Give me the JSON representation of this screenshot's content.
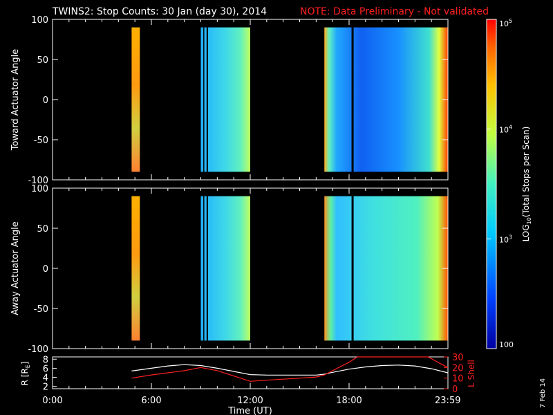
{
  "title": "TWINS2: Stop Counts: 30 Jan (day  30), 2014",
  "note": "NOTE: Data Preliminary - Not validated",
  "date_stamp": "7 Feb 14",
  "colors": {
    "background": "#000000",
    "axes": "#ffffff",
    "note": "#ff2020",
    "r_line": "#ffffff",
    "l_shell_line": "#ff2020"
  },
  "chart_data": [
    {
      "type": "heatmap",
      "ylabel": "Toward Actuator Angle",
      "ylim": [
        -100,
        100
      ],
      "yticks": [
        "100",
        "50",
        "0",
        "-50",
        "-100"
      ],
      "xlim": [
        0,
        24
      ],
      "data_blocks": [
        {
          "start": 4.8,
          "end": 5.3,
          "level": "high"
        },
        {
          "start": 9.0,
          "end": 12.0,
          "level": "medium"
        },
        {
          "start": 16.5,
          "end": 23.99,
          "level": "low"
        }
      ]
    },
    {
      "type": "heatmap",
      "ylabel": "Away Actuator Angle",
      "ylim": [
        -100,
        100
      ],
      "yticks": [
        "100",
        "50",
        "0",
        "-50",
        "-100"
      ],
      "xlim": [
        0,
        24
      ],
      "data_blocks": [
        {
          "start": 4.8,
          "end": 5.3,
          "level": "high"
        },
        {
          "start": 9.0,
          "end": 12.0,
          "level": "medium"
        },
        {
          "start": 16.5,
          "end": 23.99,
          "level": "medium-low"
        }
      ]
    },
    {
      "type": "line",
      "xlabel": "Time (UT)",
      "xticks": [
        "0:00",
        "6:00",
        "12:00",
        "18:00",
        "23:59"
      ],
      "ylabel_left": "R [R",
      "ylabel_left_sub": "E",
      "ylabel_left_close": "]",
      "yticks_left": [
        "8",
        "6",
        "4",
        "2"
      ],
      "ylim_left": [
        1.5,
        8.5
      ],
      "ylabel_right": "L Shell",
      "yticks_right": [
        "30",
        "20",
        "10",
        "0"
      ],
      "ylim_right": [
        0,
        30
      ],
      "series": [
        {
          "axis": "left",
          "color": "#ffffff",
          "x": [
            4.8,
            6,
            7,
            8,
            9,
            10,
            11,
            12,
            13,
            14,
            15,
            16,
            16.5,
            17,
            18,
            19,
            20,
            21,
            22,
            23,
            23.99
          ],
          "y": [
            5.4,
            6.0,
            6.5,
            6.8,
            6.6,
            6.0,
            5.3,
            4.6,
            4.5,
            4.5,
            4.5,
            4.5,
            4.7,
            5.1,
            5.8,
            6.3,
            6.6,
            6.7,
            6.5,
            5.9,
            5.0
          ]
        },
        {
          "axis": "right",
          "color": "#ff2020",
          "x": [
            4.8,
            6,
            7,
            8,
            9,
            10,
            11,
            12,
            13,
            14,
            15,
            16,
            16.5,
            17,
            18,
            18.5,
            22.8,
            23.5,
            23.99
          ],
          "y": [
            10,
            13,
            15,
            17,
            20,
            17,
            12,
            7,
            8,
            9,
            10,
            11,
            13,
            17,
            25,
            30,
            30,
            24,
            20
          ]
        }
      ]
    }
  ],
  "colorbar": {
    "label": "LOG",
    "label_sub": "10",
    "label_rest": "(Total Stops per Scan)",
    "ticks": [
      {
        "base": "10",
        "exp": "5",
        "value": 5
      },
      {
        "base": "10",
        "exp": "4",
        "value": 4
      },
      {
        "base": "10",
        "exp": "3",
        "value": 3
      },
      {
        "base": "100",
        "exp": "",
        "value": 2
      }
    ],
    "range": [
      2,
      5
    ]
  }
}
